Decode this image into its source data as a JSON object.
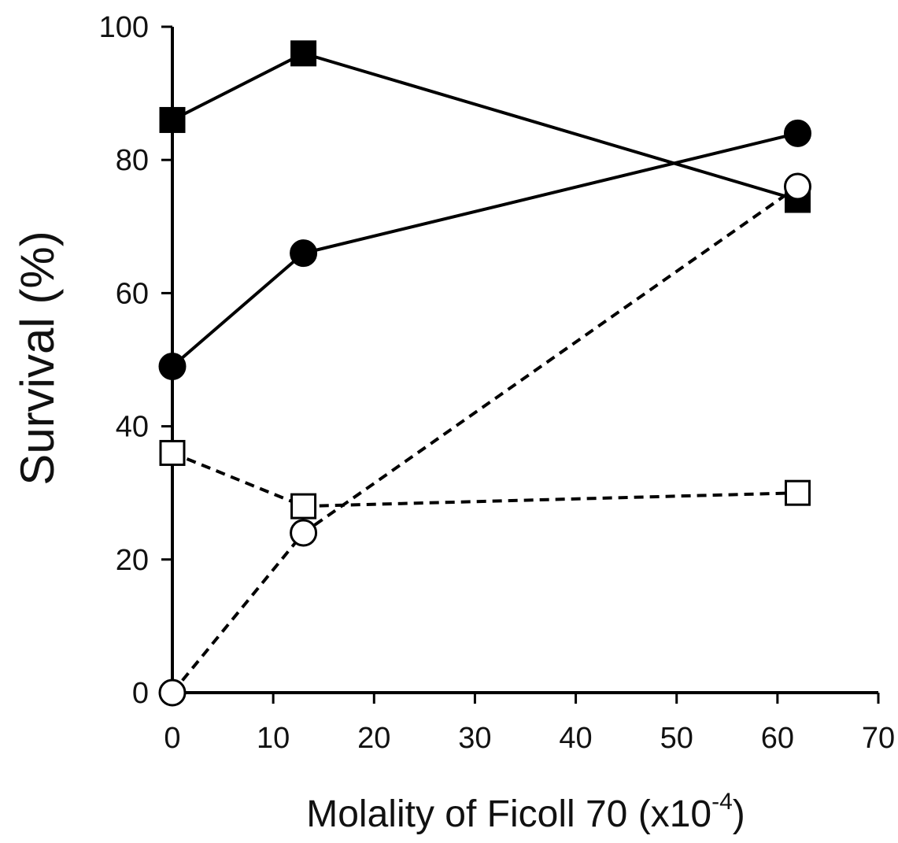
{
  "chart_data": {
    "type": "line",
    "title": "",
    "xlabel": "Molality of Ficoll 70 (x10",
    "xlabel_superscript": "-4",
    "xlabel_suffix": ")",
    "ylabel": "Survival (%)",
    "xlim": [
      0,
      70
    ],
    "ylim": [
      0,
      100
    ],
    "x_ticks": [
      0,
      10,
      20,
      30,
      40,
      50,
      60,
      70
    ],
    "y_ticks": [
      0,
      20,
      40,
      60,
      80,
      100
    ],
    "grid": false,
    "legend": "none",
    "series": [
      {
        "marker": "square",
        "filled": true,
        "line_style": "solid",
        "color": "#000000",
        "x": [
          0,
          13,
          62
        ],
        "y": [
          86,
          96,
          74
        ]
      },
      {
        "marker": "circle",
        "filled": true,
        "line_style": "solid",
        "color": "#000000",
        "x": [
          0,
          13,
          62
        ],
        "y": [
          49,
          66,
          84
        ]
      },
      {
        "marker": "circle",
        "filled": false,
        "line_style": "dashed",
        "color": "#000000",
        "x": [
          0,
          13,
          62
        ],
        "y": [
          0,
          24,
          76
        ]
      },
      {
        "marker": "square",
        "filled": false,
        "line_style": "dashed",
        "color": "#000000",
        "x": [
          0,
          13,
          62
        ],
        "y": [
          36,
          28,
          30
        ]
      }
    ]
  }
}
